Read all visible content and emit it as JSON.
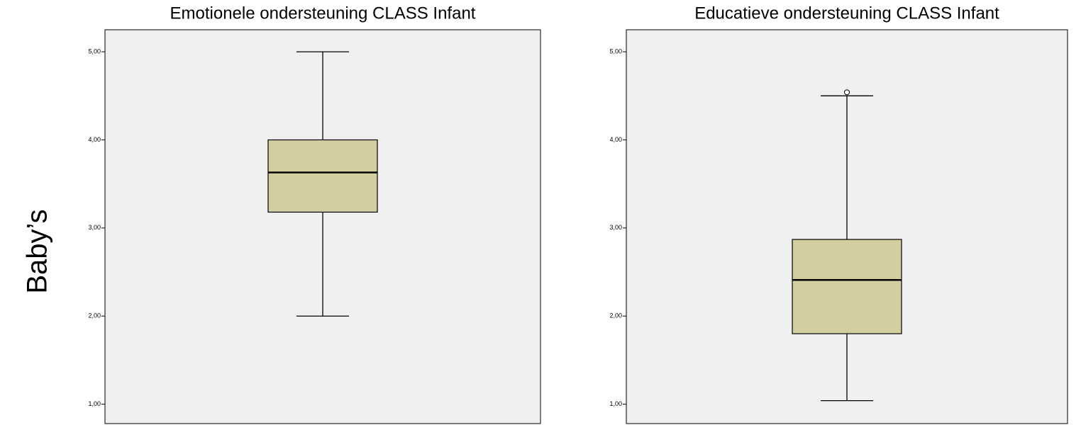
{
  "row_label": "Baby’s",
  "chart_data": [
    {
      "type": "box",
      "title": "Emotionele ondersteuning CLASS Infant",
      "min": 2.0,
      "q1": 3.18,
      "median": 3.63,
      "q3": 4.0,
      "max": 5.0,
      "outliers": [],
      "color": "#d3ce9f",
      "ylim": [
        0.78,
        5.25
      ],
      "yticks": [
        {
          "value": 1,
          "label": "1,00"
        },
        {
          "value": 2,
          "label": "2,00"
        },
        {
          "value": 3,
          "label": "3,00"
        },
        {
          "value": 4,
          "label": "4,00"
        },
        {
          "value": 5,
          "label": "5,00"
        }
      ]
    },
    {
      "type": "box",
      "title": "Educatieve ondersteuning CLASS Infant",
      "min": 1.04,
      "q1": 1.8,
      "median": 2.41,
      "q3": 2.87,
      "max": 4.5,
      "outliers": [
        4.54
      ],
      "color": "#d3ce9f",
      "ylim": [
        0.78,
        5.25
      ],
      "yticks": [
        {
          "value": 1,
          "label": "1,00"
        },
        {
          "value": 2,
          "label": "2,00"
        },
        {
          "value": 3,
          "label": "3,00"
        },
        {
          "value": 4,
          "label": "4,00"
        },
        {
          "value": 5,
          "label": "5,00"
        }
      ]
    }
  ]
}
